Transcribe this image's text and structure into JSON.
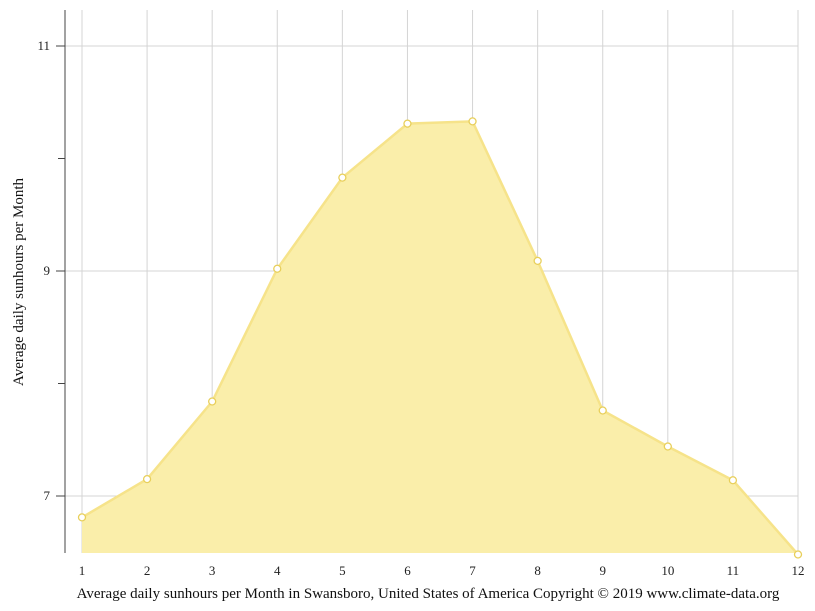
{
  "chart_data": {
    "type": "area",
    "title": "",
    "x": [
      1,
      2,
      3,
      4,
      5,
      6,
      7,
      8,
      9,
      10,
      11,
      12
    ],
    "series": [
      {
        "values": [
          6.81,
          7.15,
          7.84,
          9.02,
          9.83,
          10.31,
          10.33,
          9.09,
          7.76,
          7.44,
          7.14,
          6.48
        ]
      }
    ],
    "xlabel": "",
    "ylabel": "Average daily sunhours per Month",
    "caption": "Average daily sunhours per Month in Swansboro, United States of America Copyright © 2019 www.climate-data.org",
    "xlim": [
      1,
      12
    ],
    "ylim": [
      6.5,
      11.3
    ],
    "y_ticks_labeled": [
      7,
      9,
      11
    ],
    "y_ticks_minor": [
      8,
      10
    ],
    "grid": true,
    "colors": {
      "fill": "#faeeaa",
      "line": "#f6e38a",
      "marker_fill": "#ffffff",
      "marker_stroke": "#e8cf5a",
      "grid": "#d4d4d4",
      "axis": "#444444"
    }
  }
}
